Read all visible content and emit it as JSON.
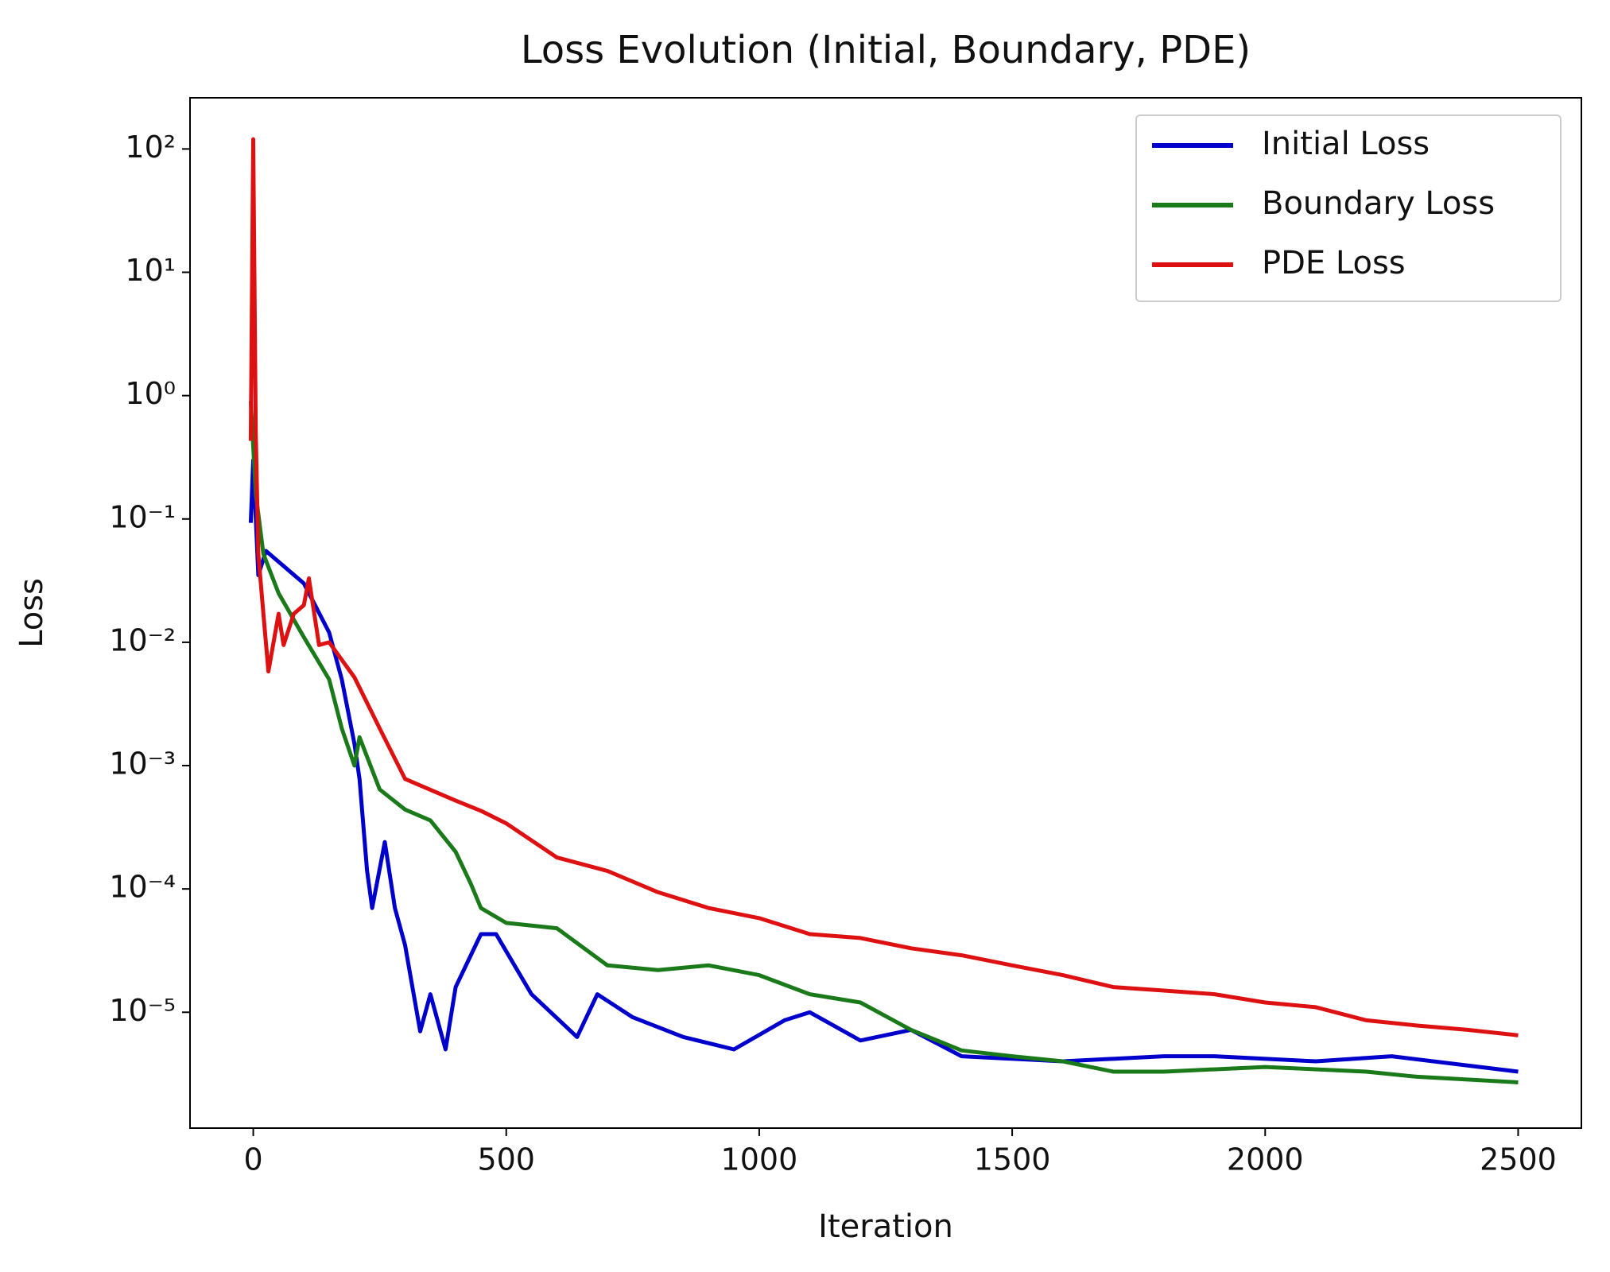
{
  "chart_data": {
    "type": "line",
    "title": "Loss Evolution (Initial, Boundary, PDE)",
    "xlabel": "Iteration",
    "ylabel": "Loss",
    "xlim": [
      -125,
      2625
    ],
    "xticks": [
      0,
      500,
      1000,
      1500,
      2000,
      2500
    ],
    "ylim": [
      1.15e-06,
      260
    ],
    "log_y": true,
    "yticks": [
      {
        "value": 100,
        "label": "10²"
      },
      {
        "value": 10,
        "label": "10¹"
      },
      {
        "value": 1,
        "label": "10⁰"
      },
      {
        "value": 0.1,
        "label": "10⁻¹"
      },
      {
        "value": 0.01,
        "label": "10⁻²"
      },
      {
        "value": 0.001,
        "label": "10⁻³"
      },
      {
        "value": 0.0001,
        "label": "10⁻⁴"
      },
      {
        "value": 1e-05,
        "label": "10⁻⁵"
      }
    ],
    "grid": false,
    "legend": "upper right",
    "series": [
      {
        "name": "Initial Loss",
        "color": "#0000cc",
        "x": [
          -5,
          0,
          10,
          25,
          100,
          150,
          175,
          200,
          210,
          225,
          235,
          260,
          280,
          300,
          330,
          350,
          380,
          400,
          450,
          480,
          550,
          640,
          680,
          750,
          850,
          950,
          1050,
          1100,
          1200,
          1300,
          1400,
          1600,
          1800,
          1900,
          2100,
          2250,
          2500
        ],
        "values": [
          0.093,
          0.3,
          0.035,
          0.055,
          0.03,
          0.012,
          0.005,
          0.0015,
          0.00078,
          0.00014,
          7e-05,
          0.00024,
          7e-05,
          3.5e-05,
          7e-06,
          1.4e-05,
          5e-06,
          1.6e-05,
          4.3e-05,
          4.3e-05,
          1.4e-05,
          6.3e-06,
          1.4e-05,
          9.1e-06,
          6.3e-06,
          5e-06,
          8.6e-06,
          1e-05,
          5.9e-06,
          7.2e-06,
          4.4e-06,
          4e-06,
          4.4e-06,
          4.4e-06,
          4e-06,
          4.4e-06,
          3.3e-06
        ]
      },
      {
        "name": "Boundary Loss",
        "color": "#1a7a1a",
        "x": [
          -5,
          5,
          20,
          50,
          100,
          150,
          175,
          200,
          210,
          250,
          300,
          350,
          400,
          430,
          450,
          500,
          600,
          700,
          800,
          900,
          1000,
          1100,
          1200,
          1300,
          1400,
          1500,
          1600,
          1700,
          1800,
          2000,
          2200,
          2300,
          2500
        ],
        "values": [
          0.9,
          0.16,
          0.052,
          0.025,
          0.011,
          0.005,
          0.002,
          0.001,
          0.0017,
          0.00064,
          0.00044,
          0.00036,
          0.0002,
          0.00011,
          7e-05,
          5.3e-05,
          4.8e-05,
          2.4e-05,
          2.2e-05,
          2.4e-05,
          2e-05,
          1.4e-05,
          1.2e-05,
          7.2e-06,
          4.9e-06,
          4.4e-06,
          4e-06,
          3.3e-06,
          3.3e-06,
          3.6e-06,
          3.3e-06,
          3e-06,
          2.7e-06
        ]
      },
      {
        "name": "PDE Loss",
        "color": "#dd1111",
        "x": [
          -5,
          0,
          5,
          10,
          20,
          30,
          50,
          60,
          80,
          100,
          110,
          130,
          150,
          200,
          250,
          300,
          400,
          450,
          500,
          600,
          700,
          800,
          900,
          1000,
          1100,
          1200,
          1300,
          1400,
          1500,
          1600,
          1700,
          1800,
          1900,
          2000,
          2100,
          2200,
          2300,
          2400,
          2500
        ],
        "values": [
          0.43,
          120,
          0.5,
          0.052,
          0.017,
          0.0058,
          0.017,
          0.0095,
          0.017,
          0.02,
          0.033,
          0.0095,
          0.01,
          0.0052,
          0.002,
          0.00078,
          0.00052,
          0.00043,
          0.00034,
          0.00018,
          0.00014,
          9.4e-05,
          7e-05,
          5.8e-05,
          4.3e-05,
          4e-05,
          3.3e-05,
          2.9e-05,
          2.4e-05,
          2e-05,
          1.6e-05,
          1.5e-05,
          1.4e-05,
          1.2e-05,
          1.1e-05,
          8.6e-06,
          7.8e-06,
          7.2e-06,
          6.5e-06
        ]
      }
    ]
  }
}
